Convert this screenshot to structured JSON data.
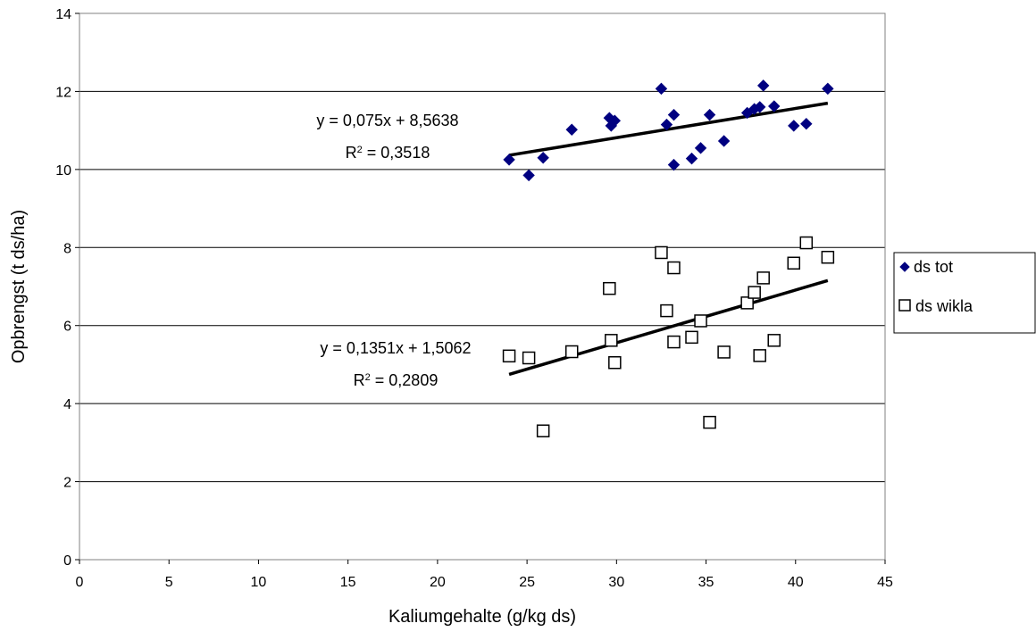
{
  "chart_data": {
    "type": "scatter",
    "xlabel": "Kaliumgehalte (g/kg ds)",
    "ylabel": "Opbrengst (t ds/ha)",
    "xlim": [
      0,
      45
    ],
    "ylim": [
      0,
      14
    ],
    "x_ticks": [
      "0",
      "5",
      "10",
      "15",
      "20",
      "25",
      "30",
      "35",
      "40",
      "45"
    ],
    "y_ticks": [
      "0",
      "2",
      "4",
      "6",
      "8",
      "10",
      "12",
      "14"
    ],
    "grid": "horizontal",
    "legend_position": "right",
    "series": [
      {
        "name": "ds tot",
        "marker": "diamond-filled",
        "color": "#000080",
        "points": [
          [
            24.0,
            10.25
          ],
          [
            25.1,
            9.85
          ],
          [
            25.9,
            10.3
          ],
          [
            27.5,
            11.02
          ],
          [
            29.6,
            11.32
          ],
          [
            29.7,
            11.12
          ],
          [
            29.9,
            11.25
          ],
          [
            32.5,
            12.07
          ],
          [
            32.8,
            11.15
          ],
          [
            33.2,
            11.4
          ],
          [
            33.2,
            10.12
          ],
          [
            34.2,
            10.28
          ],
          [
            34.7,
            10.55
          ],
          [
            35.2,
            11.4
          ],
          [
            36.0,
            10.73
          ],
          [
            37.3,
            11.45
          ],
          [
            37.7,
            11.55
          ],
          [
            38.0,
            11.6
          ],
          [
            38.2,
            12.15
          ],
          [
            38.8,
            11.62
          ],
          [
            39.9,
            11.12
          ],
          [
            40.6,
            11.17
          ],
          [
            41.8,
            12.07
          ]
        ],
        "trendline": {
          "slope": 0.075,
          "intercept": 8.5638,
          "x_range": [
            24.0,
            41.8
          ],
          "equation": "y = 0,075x + 8,5638",
          "r2_label": "R",
          "r2_sup": "2",
          "r2_value": " = 0,3518"
        }
      },
      {
        "name": "ds wikla",
        "marker": "square-open",
        "color": "#000000",
        "points": [
          [
            24.0,
            5.22
          ],
          [
            25.1,
            5.17
          ],
          [
            25.9,
            3.3
          ],
          [
            27.5,
            5.33
          ],
          [
            29.6,
            6.95
          ],
          [
            29.7,
            5.62
          ],
          [
            29.9,
            5.05
          ],
          [
            32.5,
            7.87
          ],
          [
            32.8,
            6.38
          ],
          [
            33.2,
            7.48
          ],
          [
            33.2,
            5.58
          ],
          [
            34.2,
            5.7
          ],
          [
            34.7,
            6.12
          ],
          [
            35.2,
            3.52
          ],
          [
            36.0,
            5.32
          ],
          [
            37.3,
            6.58
          ],
          [
            37.7,
            6.85
          ],
          [
            38.0,
            5.23
          ],
          [
            38.2,
            7.22
          ],
          [
            38.8,
            5.62
          ],
          [
            39.9,
            7.6
          ],
          [
            40.6,
            8.12
          ],
          [
            41.8,
            7.75
          ]
        ],
        "trendline": {
          "slope": 0.1351,
          "intercept": 1.5062,
          "x_range": [
            24.0,
            41.8
          ],
          "equation": "y = 0,1351x + 1,5062",
          "r2_label": "R",
          "r2_sup": "2",
          "r2_value": " = 0,2809"
        }
      }
    ]
  }
}
